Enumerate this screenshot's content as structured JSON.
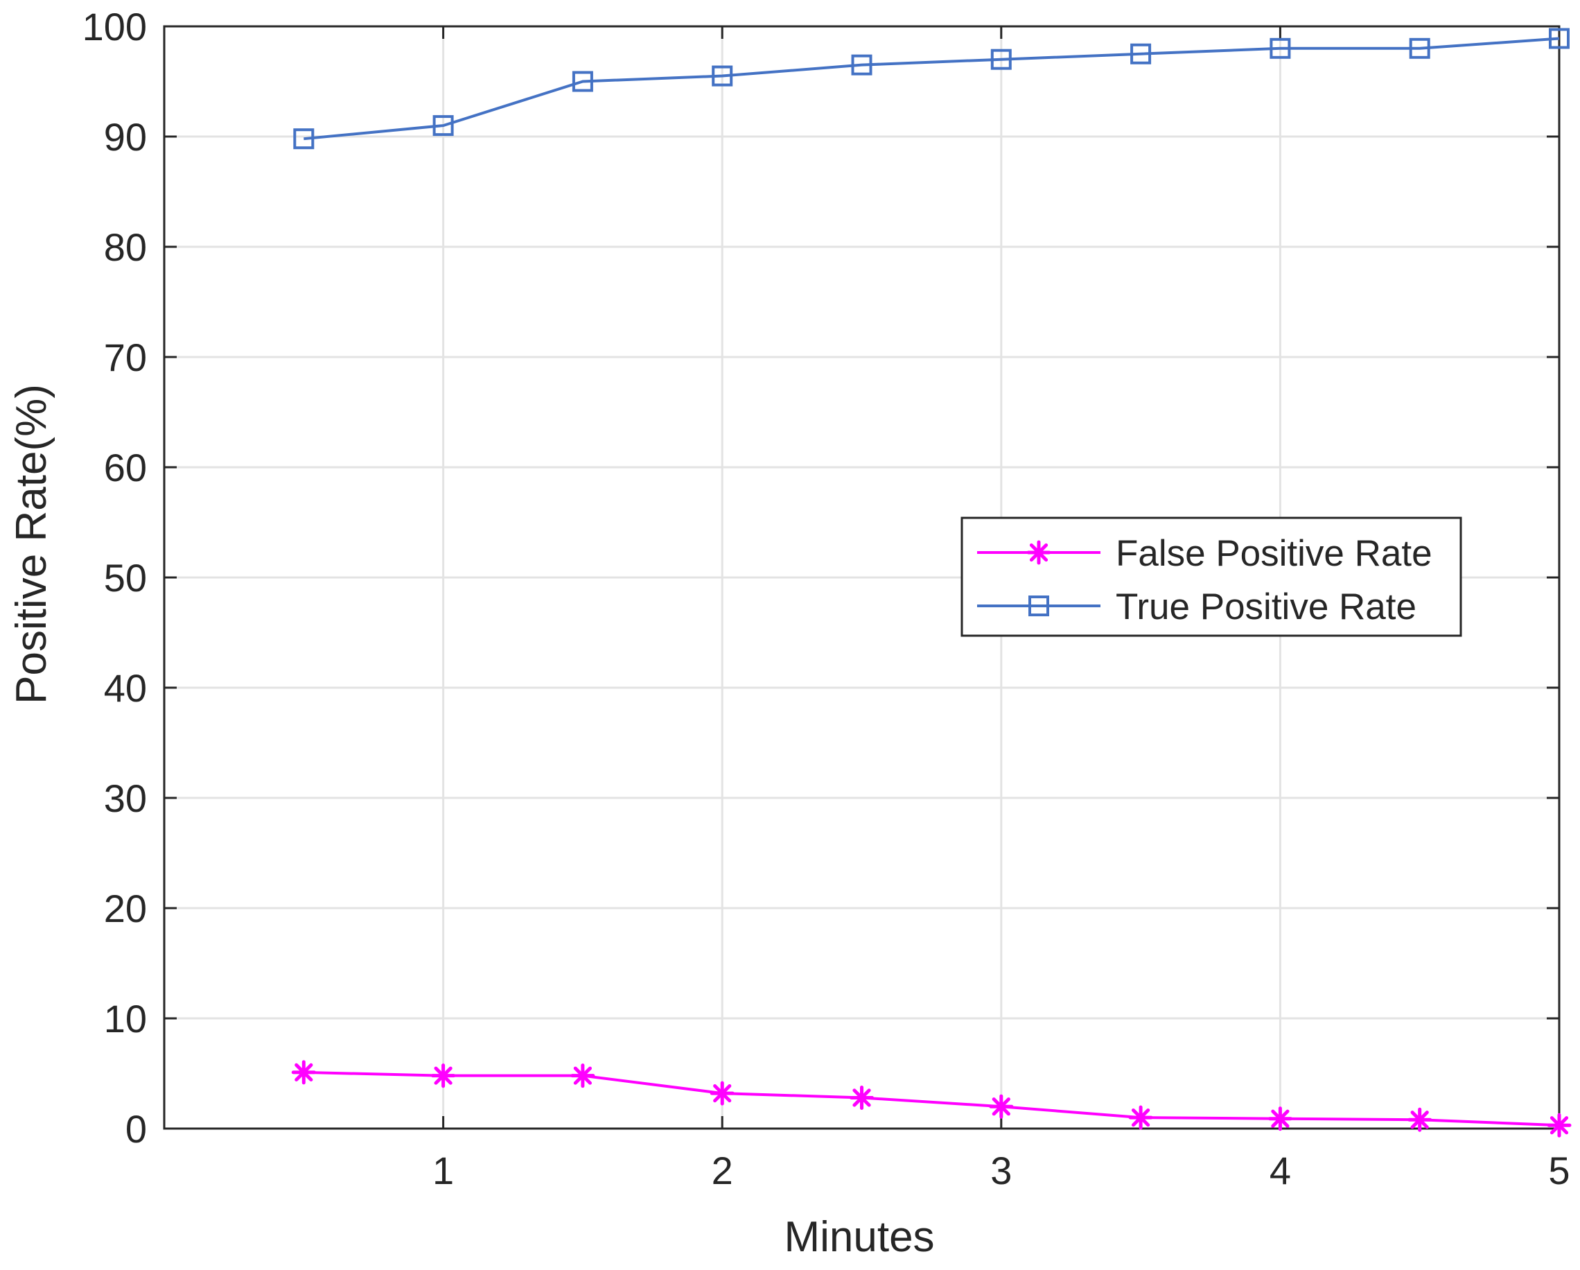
{
  "chart_data": {
    "type": "line",
    "title": "",
    "xlabel": "Minutes",
    "ylabel": "Positive Rate(%)",
    "xlim": [
      0,
      5
    ],
    "ylim": [
      0,
      100
    ],
    "xticks": [
      1,
      2,
      3,
      4,
      5
    ],
    "yticks": [
      0,
      10,
      20,
      30,
      40,
      50,
      60,
      70,
      80,
      90,
      100
    ],
    "grid": true,
    "legend_position": "center-right",
    "x": [
      0.5,
      1,
      1.5,
      2,
      2.5,
      3,
      3.5,
      4,
      4.5,
      5
    ],
    "series": [
      {
        "name": "False Positive Rate",
        "color": "#ff00ff",
        "marker": "asterisk",
        "values": [
          5.1,
          4.8,
          4.8,
          3.2,
          2.8,
          2.0,
          1.0,
          0.9,
          0.8,
          0.3
        ]
      },
      {
        "name": "True Positive Rate",
        "color": "#4472c4",
        "marker": "square",
        "values": [
          89.8,
          91.0,
          95.0,
          95.5,
          96.5,
          97.0,
          97.5,
          98.0,
          98.0,
          98.9
        ]
      }
    ]
  }
}
